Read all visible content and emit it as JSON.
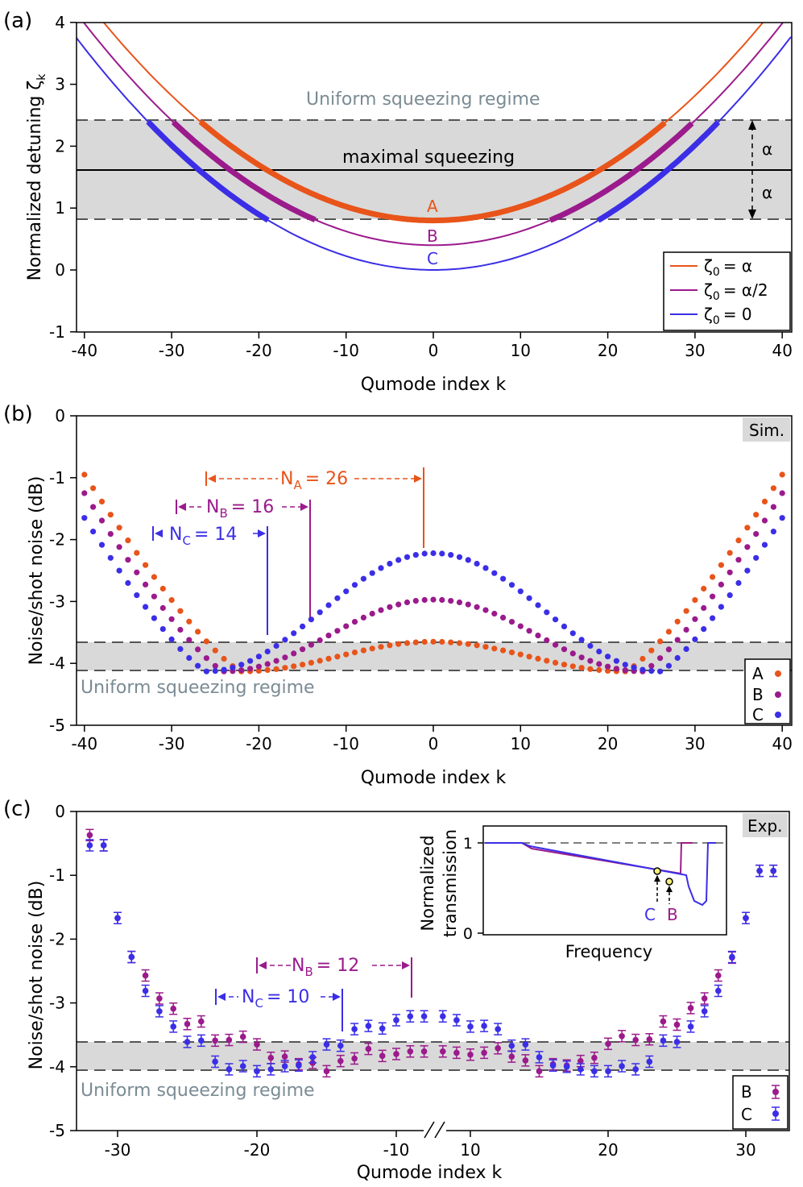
{
  "colors": {
    "A": "#e8541a",
    "B": "#9b1a8c",
    "C": "#3b2ee6",
    "band": "#d9d9d9",
    "regime_text": "#7a8b94"
  },
  "chart_data": [
    {
      "type": "line",
      "panel_label": "(a)",
      "xlabel": "Qumode index  k",
      "ylabel": "Normalized detuning ζ",
      "ylabel_sub": "k",
      "xlim": [
        -41,
        41
      ],
      "ylim": [
        -1,
        4
      ],
      "xticks": [
        "-40",
        "-30",
        "-20",
        "-10",
        "0",
        "10",
        "20",
        "30",
        "40"
      ],
      "yticks": [
        "-1",
        "0",
        "1",
        "2",
        "3",
        "4"
      ],
      "series": [
        {
          "name": "ζ0 = α",
          "letter": "A",
          "zeta0": 0.8,
          "curvature": 0.00224,
          "thick_range_abs_k": 26.7
        },
        {
          "name": "ζ0 = α/2",
          "letter": "B",
          "zeta0": 0.4,
          "curvature": 0.00224,
          "thick_range_abs_k": [
            13.4,
            29.8
          ]
        },
        {
          "name": "ζ0 = 0",
          "letter": "C",
          "zeta0": 0.0,
          "curvature": 0.00224,
          "thick_range_abs_k": [
            18.9,
            32.7
          ]
        }
      ],
      "legend": {
        "placement": "bottom-right",
        "entries": [
          "ζ",
          "ζ",
          "ζ"
        ],
        "entry_subs": [
          "0",
          "0",
          "0"
        ],
        "entry_values": [
          "= α",
          "= α/2",
          "= 0"
        ]
      },
      "band": {
        "low": 0.8,
        "high": 2.4,
        "center": 1.6
      },
      "annotations": {
        "regime": "Uniform squeezing regime",
        "center_label": "maximal squeezing",
        "alpha": "α"
      }
    },
    {
      "type": "scatter",
      "panel_label": "(b)",
      "tag": "Sim.",
      "xlabel": "Qumode index  k",
      "ylabel": "Noise/shot noise (dB)",
      "xlim": [
        -41,
        41
      ],
      "ylim": [
        -5,
        0
      ],
      "xticks": [
        "-40",
        "-30",
        "-20",
        "-10",
        "0",
        "10",
        "20",
        "30",
        "40"
      ],
      "yticks": [
        "-5",
        "-4",
        "-3",
        "-2",
        "-1",
        "0"
      ],
      "series": [
        {
          "name": "A",
          "center_value": -3.65,
          "min_value": -4.13,
          "min_k": 22,
          "edge_value": -0.95
        },
        {
          "name": "B",
          "center_value": -2.97,
          "min_value": -4.13,
          "min_k": 24,
          "edge_value": -1.25
        },
        {
          "name": "C",
          "center_value": -2.22,
          "min_value": -4.13,
          "min_k": 26,
          "edge_value": -1.65
        }
      ],
      "band": {
        "low": -4.13,
        "high": -3.65
      },
      "annotations": {
        "regime": "Uniform squeezing regime",
        "NA": "N",
        "NA_sub": "A",
        "NA_val": "= 26",
        "NB": "N",
        "NB_sub": "B",
        "NB_val": "= 16",
        "NC": "N",
        "NC_sub": "C",
        "NC_val": "= 14"
      }
    },
    {
      "type": "scatter",
      "panel_label": "(c)",
      "tag": "Exp.",
      "xlabel": "Qumode index  k",
      "ylabel": "Noise/shot noise (dB)",
      "ylim": [
        -5,
        0
      ],
      "xticks": [
        "-30",
        "-20",
        "-10",
        "10",
        "20",
        "30"
      ],
      "yticks": [
        "-5",
        "-4",
        "-3",
        "-2",
        "-1",
        "0"
      ],
      "k_left": [
        -32,
        -31,
        -30,
        -29,
        -28,
        -27,
        -26,
        -25,
        -24,
        -23,
        -22,
        -21,
        -20,
        -19,
        -18,
        -17,
        -16,
        -15,
        -14,
        -13,
        -12,
        -11,
        -10,
        -9,
        -8
      ],
      "k_right": [
        8,
        9,
        10,
        11,
        12,
        13,
        14,
        15,
        16,
        17,
        18,
        19,
        20,
        21,
        22,
        23,
        24,
        25,
        26,
        27,
        28,
        29,
        30,
        31,
        32
      ],
      "series": [
        {
          "name": "B",
          "left": [
            -0.37,
            -0.53,
            -1.67,
            -2.28,
            -2.57,
            -2.93,
            -3.09,
            -3.33,
            -3.29,
            -3.59,
            -3.58,
            -3.53,
            -3.65,
            -3.86,
            -3.84,
            -3.96,
            -3.94,
            -4.07,
            -3.91,
            -3.87,
            -3.72,
            -3.83,
            -3.8,
            -3.76,
            -3.76
          ],
          "right": [
            -3.76,
            -3.78,
            -3.81,
            -3.78,
            -3.71,
            -3.84,
            -3.9,
            -4.07,
            -3.96,
            -3.98,
            -3.91,
            -3.86,
            -3.64,
            -3.52,
            -3.58,
            -3.57,
            -3.29,
            -3.34,
            -3.08,
            -2.93,
            -2.57,
            -2.29,
            -1.67,
            -0.93,
            -0.93
          ]
        },
        {
          "name": "C",
          "left": [
            -0.53,
            -0.53,
            -1.67,
            -2.28,
            -2.81,
            -3.13,
            -3.37,
            -3.61,
            -3.59,
            -3.92,
            -4.04,
            -3.99,
            -4.07,
            -4.04,
            -3.99,
            -3.98,
            -3.85,
            -3.65,
            -3.67,
            -3.41,
            -3.36,
            -3.4,
            -3.27,
            -3.21,
            -3.21
          ],
          "right": [
            -3.21,
            -3.27,
            -3.37,
            -3.36,
            -3.41,
            -3.67,
            -3.65,
            -3.85,
            -3.98,
            -4.0,
            -4.04,
            -4.07,
            -4.07,
            -3.99,
            -4.04,
            -3.92,
            -3.59,
            -3.61,
            -3.37,
            -3.13,
            -2.81,
            -2.28,
            -1.67,
            -0.93,
            -0.93
          ]
        }
      ],
      "band": {
        "low": -4.08,
        "high": -3.62
      },
      "annotations": {
        "regime": "Uniform squeezing regime",
        "NB": "N",
        "NB_sub": "B",
        "NB_val": "= 12",
        "NC": "N",
        "NC_sub": "C",
        "NC_val": "= 10"
      },
      "inset": {
        "xlabel": "Frequency",
        "ylabel_line1": "Normalized",
        "ylabel_line2": "transmission",
        "yticks": [
          "0",
          "1"
        ],
        "marker_labels": [
          "C",
          "B"
        ]
      }
    }
  ]
}
